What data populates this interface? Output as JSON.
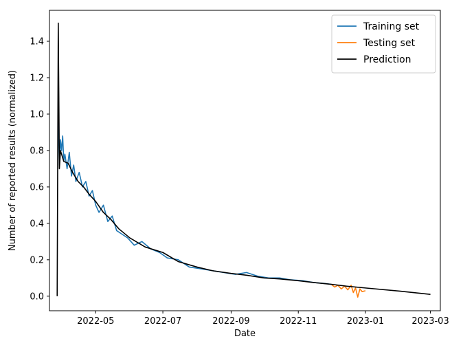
{
  "chart_data": {
    "type": "line",
    "title": "",
    "xlabel": "Date",
    "ylabel": "Number of reported results (normalized)",
    "x_axis_type": "date",
    "xlim": [
      "2022-03-20",
      "2023-03-10"
    ],
    "ylim": [
      -0.08,
      1.57
    ],
    "x_ticks": [
      "2022-05-01",
      "2022-07-01",
      "2022-09-01",
      "2022-11-01",
      "2023-01-01",
      "2023-03-01"
    ],
    "x_tick_labels": [
      "2022-05",
      "2022-07",
      "2022-09",
      "2022-11",
      "2023-01",
      "2023-03"
    ],
    "y_ticks": [
      0.0,
      0.2,
      0.4,
      0.6,
      0.8,
      1.0,
      1.2,
      1.4
    ],
    "y_tick_labels": [
      "0.0",
      "0.2",
      "0.4",
      "0.6",
      "0.8",
      "1.0",
      "1.2",
      "1.4"
    ],
    "grid": false,
    "legend_position": "top-right",
    "series": [
      {
        "name": "Training set",
        "color": "#1f77b4",
        "x": [
          "2022-03-28",
          "2022-03-29",
          "2022-03-30",
          "2022-03-31",
          "2022-04-01",
          "2022-04-02",
          "2022-04-03",
          "2022-04-05",
          "2022-04-07",
          "2022-04-09",
          "2022-04-11",
          "2022-04-13",
          "2022-04-16",
          "2022-04-19",
          "2022-04-22",
          "2022-04-25",
          "2022-04-28",
          "2022-05-01",
          "2022-05-04",
          "2022-05-08",
          "2022-05-12",
          "2022-05-16",
          "2022-05-20",
          "2022-05-25",
          "2022-05-30",
          "2022-06-05",
          "2022-06-12",
          "2022-06-20",
          "2022-06-28",
          "2022-07-05",
          "2022-07-15",
          "2022-07-25",
          "2022-08-05",
          "2022-08-15",
          "2022-08-25",
          "2022-09-05",
          "2022-09-15",
          "2022-09-25",
          "2022-10-05",
          "2022-10-15",
          "2022-10-25",
          "2022-11-05",
          "2022-11-15",
          "2022-11-25",
          "2022-12-01"
        ],
        "y": [
          1.0,
          0.72,
          0.86,
          0.8,
          0.88,
          0.74,
          0.78,
          0.7,
          0.79,
          0.66,
          0.72,
          0.63,
          0.68,
          0.6,
          0.63,
          0.55,
          0.58,
          0.5,
          0.46,
          0.5,
          0.41,
          0.44,
          0.36,
          0.34,
          0.32,
          0.28,
          0.3,
          0.26,
          0.24,
          0.21,
          0.2,
          0.16,
          0.15,
          0.14,
          0.13,
          0.12,
          0.13,
          0.11,
          0.1,
          0.1,
          0.09,
          0.085,
          0.075,
          0.07,
          0.065
        ]
      },
      {
        "name": "Testing set",
        "color": "#ff7f0e",
        "x": [
          "2022-12-01",
          "2022-12-04",
          "2022-12-07",
          "2022-12-10",
          "2022-12-13",
          "2022-12-16",
          "2022-12-19",
          "2022-12-21",
          "2022-12-23",
          "2022-12-25",
          "2022-12-27",
          "2022-12-29",
          "2023-01-01"
        ],
        "y": [
          0.065,
          0.05,
          0.06,
          0.04,
          0.055,
          0.035,
          0.06,
          0.02,
          0.045,
          -0.005,
          0.04,
          0.025,
          0.03
        ]
      },
      {
        "name": "Prediction",
        "color": "#000000",
        "x": [
          "2022-03-27",
          "2022-03-28",
          "2022-03-29",
          "2022-03-30",
          "2022-04-02",
          "2022-04-06",
          "2022-04-10",
          "2022-04-15",
          "2022-04-20",
          "2022-04-25",
          "2022-05-01",
          "2022-05-08",
          "2022-05-15",
          "2022-05-22",
          "2022-06-01",
          "2022-06-15",
          "2022-07-01",
          "2022-07-15",
          "2022-08-01",
          "2022-08-15",
          "2022-09-01",
          "2022-09-15",
          "2022-10-01",
          "2022-10-15",
          "2022-11-01",
          "2022-11-15",
          "2022-12-01",
          "2022-12-15",
          "2023-01-01",
          "2023-02-01",
          "2023-03-01"
        ],
        "y": [
          0.0,
          1.5,
          0.7,
          0.8,
          0.74,
          0.73,
          0.68,
          0.63,
          0.6,
          0.56,
          0.52,
          0.46,
          0.42,
          0.37,
          0.32,
          0.27,
          0.24,
          0.19,
          0.16,
          0.14,
          0.125,
          0.115,
          0.1,
          0.095,
          0.085,
          0.075,
          0.065,
          0.055,
          0.045,
          0.028,
          0.01
        ]
      }
    ]
  }
}
